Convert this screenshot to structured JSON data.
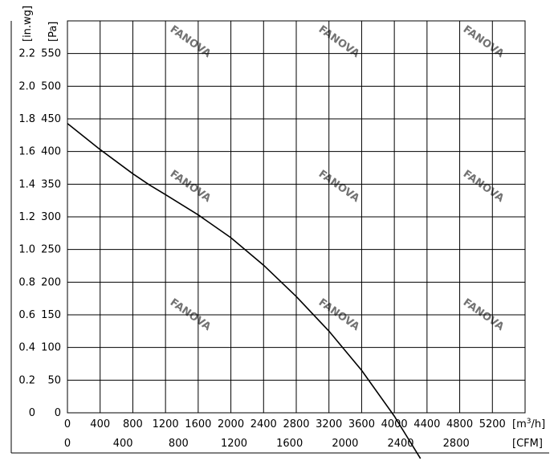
{
  "chart_data": {
    "type": "line",
    "title": "",
    "xlabel_primary": "[m³/h]",
    "xlabel_primary_base": "[m",
    "xlabel_primary_sup": "3",
    "xlabel_primary_tail": "/h]",
    "xlabel_secondary": "[CFM]",
    "ylabel_primary": "[Pa]",
    "ylabel_secondary": "[in.wg]",
    "xlim": [
      0,
      5600
    ],
    "ylim": [
      0,
      600
    ],
    "grid": true,
    "x_ticks_m3h": [
      "0",
      "400",
      "800",
      "1200",
      "1600",
      "2000",
      "2400",
      "2800",
      "3200",
      "3600",
      "4000",
      "4400",
      "4800",
      "5200"
    ],
    "x_ticks_cfm": [
      "0",
      "400",
      "800",
      "1200",
      "1600",
      "2000",
      "2400",
      "2800"
    ],
    "y_ticks_pa": [
      "0",
      "50",
      "100",
      "150",
      "200",
      "250",
      "300",
      "350",
      "400",
      "450",
      "500",
      "550"
    ],
    "y_ticks_inwg": [
      "0",
      "0.2",
      "0.4",
      "0.6",
      "0.8",
      "1.0",
      "1.2",
      "1.4",
      "1.6",
      "1.8",
      "2.0",
      "2.2"
    ],
    "series": [
      {
        "x": [
          0,
          400,
          800,
          1000,
          1200,
          1600,
          2000,
          2400,
          2800,
          3200,
          3600,
          4000,
          4320
        ],
        "y": [
          443,
          403,
          366,
          349,
          334,
          303,
          268,
          226,
          178,
          125,
          65,
          -5,
          -70
        ]
      }
    ],
    "line_color": "#000000",
    "watermark": "FANOVA"
  }
}
